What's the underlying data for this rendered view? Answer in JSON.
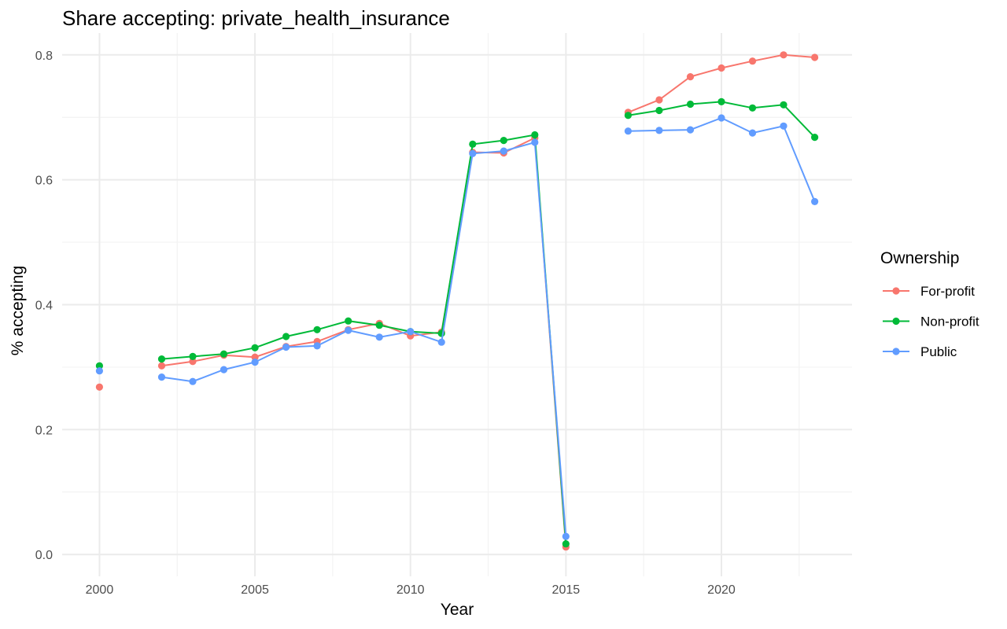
{
  "chart_data": {
    "type": "line",
    "title": "Share accepting: private_health_insurance",
    "xlabel": "Year",
    "ylabel": "% accepting",
    "xlim": [
      1998.8,
      2024.2
    ],
    "ylim": [
      -0.035,
      0.835
    ],
    "x_ticks": [
      2000,
      2005,
      2010,
      2015,
      2020
    ],
    "y_ticks": [
      0.0,
      0.2,
      0.4,
      0.6,
      0.8
    ],
    "y_tick_labels": [
      "0.0",
      "0.2",
      "0.4",
      "0.6",
      "0.8"
    ],
    "grid": true,
    "legend": {
      "title": "Ownership",
      "position": "right"
    },
    "series": [
      {
        "name": "For-profit",
        "color": "#F8766D",
        "points": [
          [
            2000,
            0.268
          ],
          [
            2002,
            0.302
          ],
          [
            2003,
            0.309
          ],
          [
            2004,
            0.319
          ],
          [
            2005,
            0.316
          ],
          [
            2006,
            0.333
          ],
          [
            2007,
            0.341
          ],
          [
            2008,
            0.36
          ],
          [
            2009,
            0.37
          ],
          [
            2010,
            0.35
          ],
          [
            2011,
            0.356
          ],
          [
            2012,
            0.644
          ],
          [
            2013,
            0.643
          ],
          [
            2014,
            0.667
          ],
          [
            2015,
            0.012
          ],
          [
            2017,
            0.708
          ],
          [
            2018,
            0.728
          ],
          [
            2019,
            0.765
          ],
          [
            2020,
            0.779
          ],
          [
            2021,
            0.79
          ],
          [
            2022,
            0.8
          ],
          [
            2023,
            0.796
          ]
        ]
      },
      {
        "name": "Non-profit",
        "color": "#00BA38",
        "points": [
          [
            2000,
            0.302
          ],
          [
            2002,
            0.313
          ],
          [
            2003,
            0.317
          ],
          [
            2004,
            0.321
          ],
          [
            2005,
            0.331
          ],
          [
            2006,
            0.349
          ],
          [
            2007,
            0.36
          ],
          [
            2008,
            0.374
          ],
          [
            2009,
            0.367
          ],
          [
            2010,
            0.357
          ],
          [
            2011,
            0.354
          ],
          [
            2012,
            0.657
          ],
          [
            2013,
            0.663
          ],
          [
            2014,
            0.672
          ],
          [
            2015,
            0.017
          ],
          [
            2017,
            0.703
          ],
          [
            2018,
            0.711
          ],
          [
            2019,
            0.721
          ],
          [
            2020,
            0.725
          ],
          [
            2021,
            0.715
          ],
          [
            2022,
            0.72
          ],
          [
            2023,
            0.668
          ]
        ]
      },
      {
        "name": "Public",
        "color": "#619CFF",
        "points": [
          [
            2000,
            0.294
          ],
          [
            2002,
            0.284
          ],
          [
            2003,
            0.277
          ],
          [
            2004,
            0.296
          ],
          [
            2005,
            0.308
          ],
          [
            2006,
            0.332
          ],
          [
            2007,
            0.334
          ],
          [
            2008,
            0.359
          ],
          [
            2009,
            0.348
          ],
          [
            2010,
            0.357
          ],
          [
            2011,
            0.34
          ],
          [
            2012,
            0.642
          ],
          [
            2013,
            0.646
          ],
          [
            2014,
            0.66
          ],
          [
            2015,
            0.029
          ],
          [
            2017,
            0.678
          ],
          [
            2018,
            0.679
          ],
          [
            2019,
            0.68
          ],
          [
            2020,
            0.699
          ],
          [
            2021,
            0.675
          ],
          [
            2022,
            0.686
          ],
          [
            2023,
            0.565
          ]
        ]
      }
    ]
  }
}
